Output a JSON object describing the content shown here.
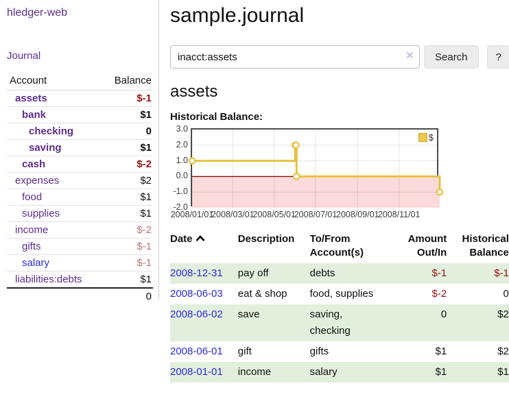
{
  "app": {
    "title": "hledger-web"
  },
  "sidebar": {
    "journal_label": "Journal",
    "accounts": {
      "header_account": "Account",
      "header_balance": "Balance",
      "rows": [
        {
          "name": "assets",
          "balance": "$-1",
          "level": 1,
          "in_tree": true,
          "name_color": "purple",
          "balance_color": "negative-strong"
        },
        {
          "name": "bank",
          "balance": "$1",
          "level": 2,
          "in_tree": true,
          "name_color": "purple",
          "balance_color": "positive-strong"
        },
        {
          "name": "checking",
          "balance": "0",
          "level": 3,
          "in_tree": true,
          "name_color": "purple",
          "balance_color": "positive-strong"
        },
        {
          "name": "saving",
          "balance": "$1",
          "level": 3,
          "in_tree": true,
          "name_color": "purple",
          "balance_color": "positive-strong"
        },
        {
          "name": "cash",
          "balance": "$-2",
          "level": 2,
          "in_tree": true,
          "name_color": "purple",
          "balance_color": "negative-strong"
        },
        {
          "name": "expenses",
          "balance": "$2",
          "level": 1,
          "in_tree": false,
          "name_color": "purple",
          "balance_color": "positive"
        },
        {
          "name": "food",
          "balance": "$1",
          "level": 2,
          "in_tree": false,
          "name_color": "purple",
          "balance_color": "positive"
        },
        {
          "name": "supplies",
          "balance": "$1",
          "level": 2,
          "in_tree": false,
          "name_color": "purple",
          "balance_color": "positive"
        },
        {
          "name": "income",
          "balance": "$-2",
          "level": 1,
          "in_tree": false,
          "name_color": "purple",
          "balance_color": "negative-soft"
        },
        {
          "name": "gifts",
          "balance": "$-1",
          "level": 2,
          "in_tree": false,
          "name_color": "purple",
          "balance_color": "negative-soft"
        },
        {
          "name": "salary",
          "balance": "$-1",
          "level": 2,
          "in_tree": false,
          "name_color": "blue",
          "balance_color": "negative-soft"
        },
        {
          "name": "liabilities:debts",
          "balance": "$1",
          "level": 1,
          "in_tree": false,
          "name_color": "purple",
          "balance_color": "positive"
        }
      ],
      "total": "0"
    }
  },
  "main": {
    "title": "sample.journal",
    "search": {
      "value": "inacct:assets",
      "clear_icon": "×",
      "button_label": "Search",
      "help_label": "?"
    },
    "account_heading": "assets"
  },
  "chart_data": {
    "type": "line",
    "title": "Historical Balance:",
    "step": true,
    "series": [
      {
        "name": "$",
        "points": [
          [
            "2008-01-01",
            1
          ],
          [
            "2008-06-01",
            2
          ],
          [
            "2008-06-02",
            2
          ],
          [
            "2008-06-03",
            0
          ],
          [
            "2008-12-31",
            -1
          ]
        ]
      }
    ],
    "xrange": [
      "2008-01-01",
      "2008-12-31"
    ],
    "ylim": [
      -2,
      3
    ],
    "x_ticks": [
      "2008/01/01",
      "2008/03/01",
      "2008/05/01",
      "2008/07/01",
      "2008/09/01",
      "2008/11/01"
    ],
    "y_ticks": [
      "3.0",
      "2.0",
      "1.0",
      "0.0",
      "-1.0",
      "-2.0"
    ],
    "legend": "$",
    "legend_position": "top-right",
    "grid": true,
    "line_color": "#e7c13f",
    "point_fill": "#ffffff",
    "zero_line_color": "#7d0f0f",
    "negative_region_color": "#fadada"
  },
  "register": {
    "headers": {
      "date": "Date",
      "description": "Description",
      "accounts": "To/From Account(s)",
      "amount": "Amount Out/In",
      "balance": "Historical Balance"
    },
    "rows": [
      {
        "date": "2008-12-31",
        "description": "pay off",
        "accounts": "debts",
        "amount": "$-1",
        "amount_negative": true,
        "balance": "$-1",
        "balance_negative": true
      },
      {
        "date": "2008-06-03",
        "description": "eat & shop",
        "accounts": "food, supplies",
        "amount": "$-2",
        "amount_negative": true,
        "balance": "0",
        "balance_negative": false
      },
      {
        "date": "2008-06-02",
        "description": "save",
        "accounts": "saving, checking",
        "amount": "0",
        "amount_negative": false,
        "balance": "$2",
        "balance_negative": false
      },
      {
        "date": "2008-06-01",
        "description": "gift",
        "accounts": "gifts",
        "amount": "$1",
        "amount_negative": false,
        "balance": "$2",
        "balance_negative": false
      },
      {
        "date": "2008-01-01",
        "description": "income",
        "accounts": "salary",
        "amount": "$1",
        "amount_negative": false,
        "balance": "$1",
        "balance_negative": false
      }
    ],
    "stripe_color": "#e1efdc",
    "date_link_color": "#2a2ae0",
    "negative_color": "#9a1111",
    "accent_purple": "#5b2d90"
  }
}
